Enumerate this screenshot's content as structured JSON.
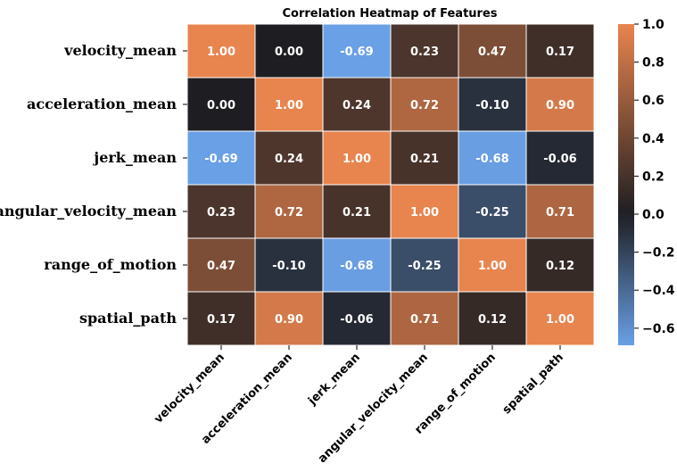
{
  "chart_data": {
    "type": "heatmap",
    "title": "Correlation Heatmap of Features",
    "row_labels": [
      "velocity_mean",
      "acceleration_mean",
      "jerk_mean",
      "angular_velocity_mean",
      "range_of_motion",
      "spatial_path"
    ],
    "col_labels": [
      "velocity_mean",
      "acceleration_mean",
      "jerk_mean",
      "angular_velocity_mean",
      "range_of_motion",
      "spatial_path"
    ],
    "values": [
      [
        1.0,
        0.0,
        -0.69,
        0.23,
        0.47,
        0.17
      ],
      [
        0.0,
        1.0,
        0.24,
        0.72,
        -0.1,
        0.9
      ],
      [
        -0.69,
        0.24,
        1.0,
        0.21,
        -0.68,
        -0.06
      ],
      [
        0.23,
        0.72,
        0.21,
        1.0,
        -0.25,
        0.71
      ],
      [
        0.47,
        -0.1,
        -0.68,
        -0.25,
        1.0,
        0.12
      ],
      [
        0.17,
        0.9,
        -0.06,
        0.71,
        0.12,
        1.0
      ]
    ],
    "annotation_format": "0.00",
    "colorbar": {
      "vmin": -0.69,
      "vmax": 1.0,
      "center": 0.0,
      "ticks": [
        1.0,
        0.8,
        0.6,
        0.4,
        0.2,
        0.0,
        -0.2,
        -0.4,
        -0.6
      ],
      "tick_labels": [
        "1.0",
        "0.8",
        "0.6",
        "0.4",
        "0.2",
        "0.0",
        "−0.2",
        "−0.4",
        "−0.6"
      ]
    },
    "colors": {
      "low": "#6aa0e6",
      "mid": "#1e1e22",
      "high": "#e8844e",
      "cell_border": "#ffffff"
    },
    "grid": false
  }
}
